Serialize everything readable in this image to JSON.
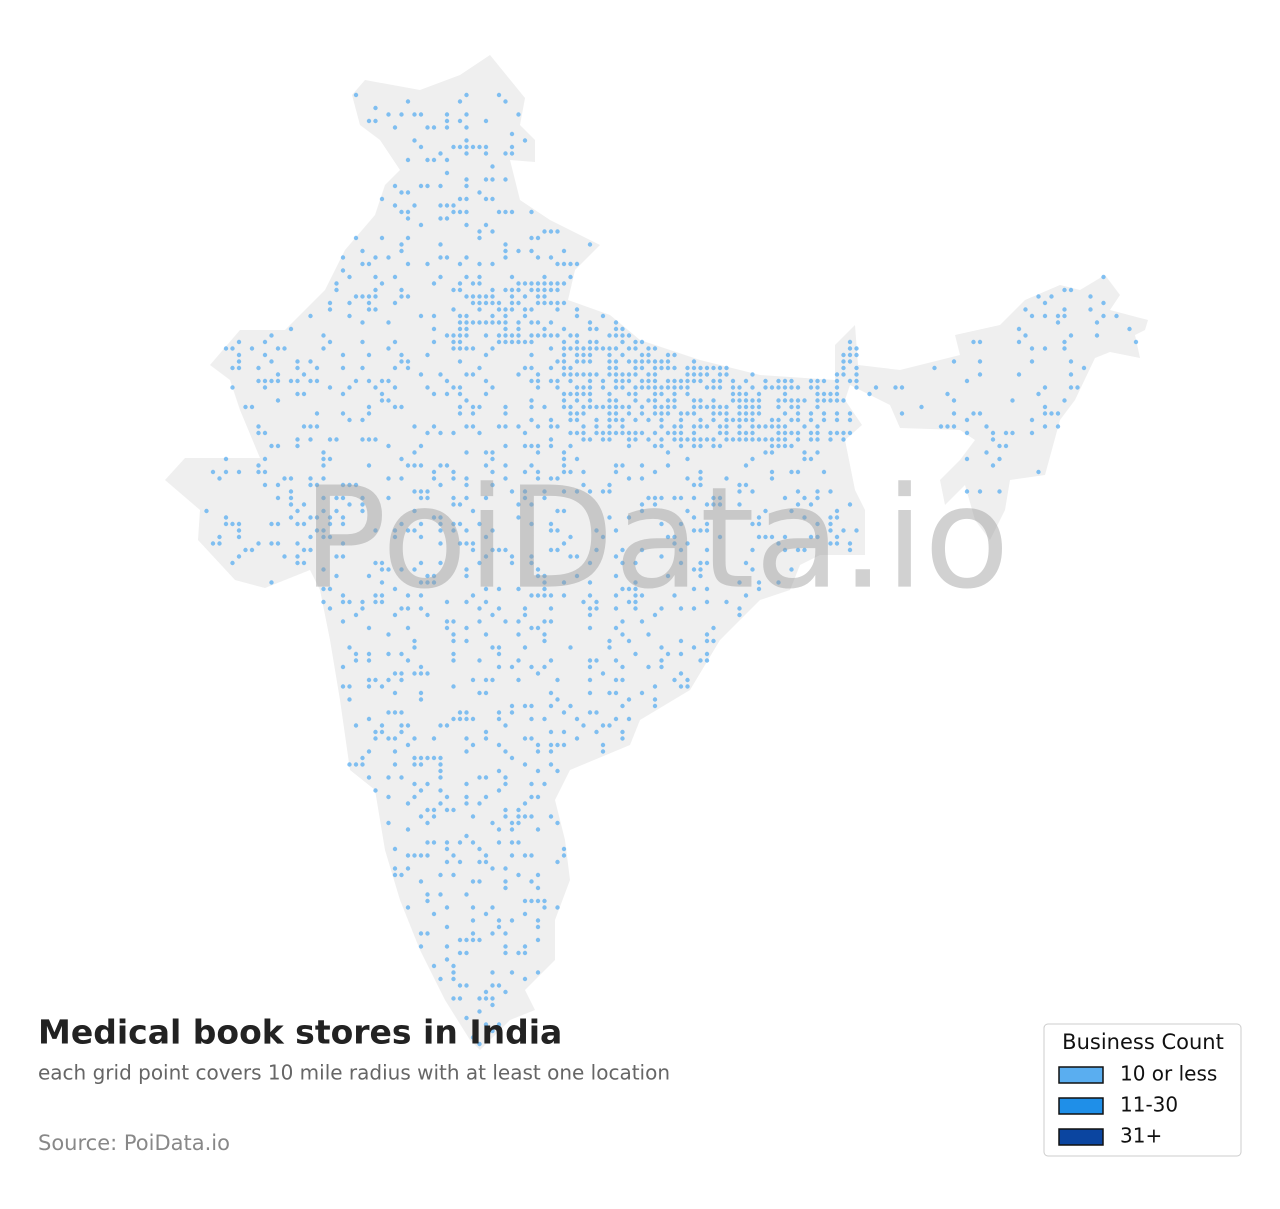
{
  "map": {
    "title": "Medical book stores in India",
    "subtitle": "each grid point covers 10 mile radius with at least one location",
    "source": "Source: PoiData.io",
    "watermark": "PoiData.io",
    "legend": {
      "title": "Business Count",
      "items": [
        {
          "label": "10 or less",
          "color": "#5aaef0"
        },
        {
          "label": "11-30",
          "color": "#1f8fe8"
        },
        {
          "label": "31+",
          "color": "#0b45a0"
        }
      ]
    }
  }
}
